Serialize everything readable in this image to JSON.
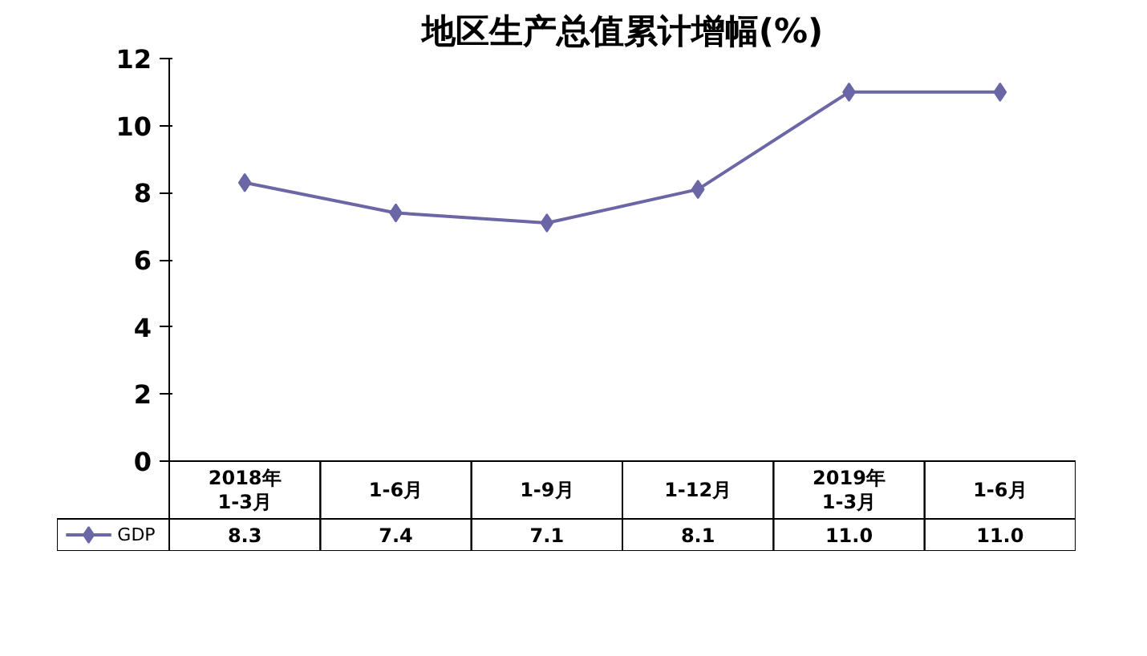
{
  "chart_data": {
    "type": "line",
    "title": "地区生产总值累计增幅(%)",
    "categories": [
      "2018年\n1-3月",
      "1-6月",
      "1-9月",
      "1-12月",
      "2019年\n1-3月",
      "1-6月"
    ],
    "series": [
      {
        "name": "GDP",
        "color": "#6b66a6",
        "values": [
          8.3,
          7.4,
          7.1,
          8.1,
          11.0,
          11.0
        ],
        "value_labels": [
          "8.3",
          "7.4",
          "7.1",
          "8.1",
          "11.0",
          "11.0"
        ]
      }
    ],
    "ylim": [
      0,
      12
    ],
    "yticks": [
      0,
      2,
      4,
      6,
      8,
      10,
      12
    ],
    "marker": "diamond",
    "legend": "bottom left"
  }
}
